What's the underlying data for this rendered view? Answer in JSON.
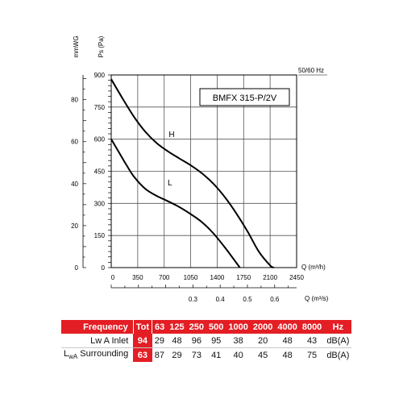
{
  "chart_data": {
    "type": "line",
    "model_label": "BMFX 315-P/2V",
    "frequency_label": "50/60 Hz",
    "y_unit_left": "mmWG",
    "y_unit_right": "Ps (Pa)",
    "x_unit_top": "Q (m³/h)",
    "x_unit_bottom": "Q (m³/s)",
    "x_ticks_m3h": [
      "0",
      "350",
      "700",
      "1050",
      "1400",
      "1750",
      "2100",
      "2450"
    ],
    "x_ticks_m3s": [
      {
        "value": 0.3,
        "label": "0.3"
      },
      {
        "value": 0.4,
        "label": "0.4"
      },
      {
        "value": 0.5,
        "label": "0.5"
      },
      {
        "value": 0.6,
        "label": "0.6"
      }
    ],
    "y_ticks_pa": [
      "0",
      "150",
      "300",
      "450",
      "600",
      "750",
      "900"
    ],
    "y_ticks_mmwg": [
      {
        "value": 0,
        "label": "0"
      },
      {
        "value": 20,
        "label": "20"
      },
      {
        "value": 40,
        "label": "40"
      },
      {
        "value": 60,
        "label": "60"
      },
      {
        "value": 80,
        "label": "80"
      }
    ],
    "xlim": [
      0,
      2450
    ],
    "ylim": [
      0,
      900
    ],
    "grid": true,
    "series": [
      {
        "name": "H",
        "color": "#000000",
        "points": [
          [
            0,
            880
          ],
          [
            150,
            790
          ],
          [
            300,
            705
          ],
          [
            450,
            635
          ],
          [
            600,
            582
          ],
          [
            750,
            543
          ],
          [
            900,
            510
          ],
          [
            1050,
            478
          ],
          [
            1200,
            440
          ],
          [
            1350,
            392
          ],
          [
            1500,
            330
          ],
          [
            1650,
            255
          ],
          [
            1800,
            170
          ],
          [
            1950,
            75
          ],
          [
            2100,
            10
          ],
          [
            2150,
            0
          ]
        ]
      },
      {
        "name": "L",
        "color": "#000000",
        "points": [
          [
            0,
            600
          ],
          [
            100,
            540
          ],
          [
            200,
            480
          ],
          [
            300,
            425
          ],
          [
            450,
            368
          ],
          [
            600,
            335
          ],
          [
            750,
            310
          ],
          [
            900,
            283
          ],
          [
            1050,
            250
          ],
          [
            1200,
            212
          ],
          [
            1350,
            160
          ],
          [
            1500,
            95
          ],
          [
            1600,
            48
          ],
          [
            1700,
            0
          ]
        ]
      }
    ]
  },
  "table": {
    "header": {
      "label": "Frequency",
      "tot": "Tot",
      "bands": [
        "63",
        "125",
        "250",
        "500",
        "1000",
        "2000",
        "4000",
        "8000"
      ],
      "unit": "Hz"
    },
    "rows": [
      {
        "label": "Lw A Inlet",
        "tot": "94",
        "values": [
          "29",
          "48",
          "96",
          "95",
          "38",
          "20",
          "48",
          "43"
        ],
        "unit": "dB(A)"
      },
      {
        "label_main": "L",
        "label_sub": "wA",
        "label_rest": " Surrounding",
        "tot": "63",
        "values": [
          "87",
          "29",
          "73",
          "41",
          "40",
          "45",
          "48",
          "75"
        ],
        "unit": "dB(A)"
      }
    ]
  }
}
